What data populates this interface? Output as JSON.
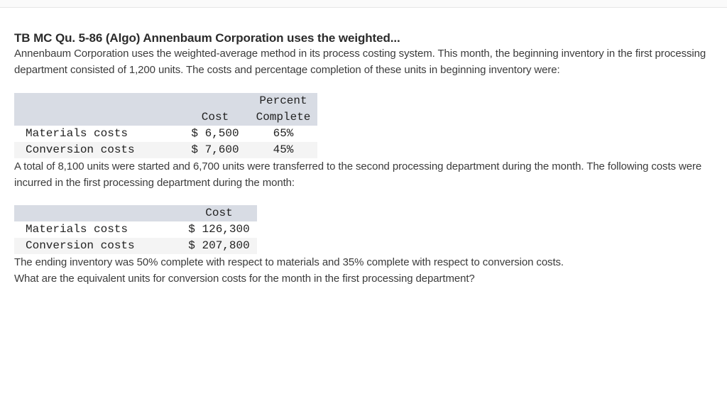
{
  "page": {
    "title": "TB MC Qu. 5-86 (Algo) Annenbaum Corporation uses the weighted..."
  },
  "paragraphs": {
    "intro": "Annenbaum Corporation uses the weighted-average method in its process costing system. This month, the beginning inventory in the first processing department consisted of 1,200 units. The costs and percentage completion of these units in beginning inventory were:",
    "middle": "A total of 8,100 units were started and 6,700 units were transferred to the second processing department during the month. The following costs were incurred in the first processing department during the month:",
    "ending": "The ending inventory was 50% complete with respect to materials and 35% complete with respect to conversion costs.",
    "question": "What are the equivalent units for conversion costs for the month in the first processing department?"
  },
  "beginning_inventory_table": {
    "headers": {
      "label": "",
      "cost": "Cost",
      "percent_line1": "Percent",
      "percent_line2": "Complete"
    },
    "rows": [
      {
        "label": "Materials costs",
        "cost": "$ 6,500",
        "percent": "65%"
      },
      {
        "label": "Conversion costs",
        "cost": "$ 7,600",
        "percent": "45%"
      }
    ]
  },
  "month_costs_table": {
    "headers": {
      "label": "",
      "cost": "Cost"
    },
    "rows": [
      {
        "label": "Materials costs",
        "cost": "$ 126,300"
      },
      {
        "label": "Conversion costs",
        "cost": "$ 207,800"
      }
    ]
  },
  "colors": {
    "page_bg": "#ffffff",
    "topbar_bg": "#fafafa",
    "table_header_bg": "#d8dce4",
    "table_alt_row_bg": "#f4f4f4",
    "body_text": "#3b3b3b",
    "title_text": "#2b2b2b"
  }
}
